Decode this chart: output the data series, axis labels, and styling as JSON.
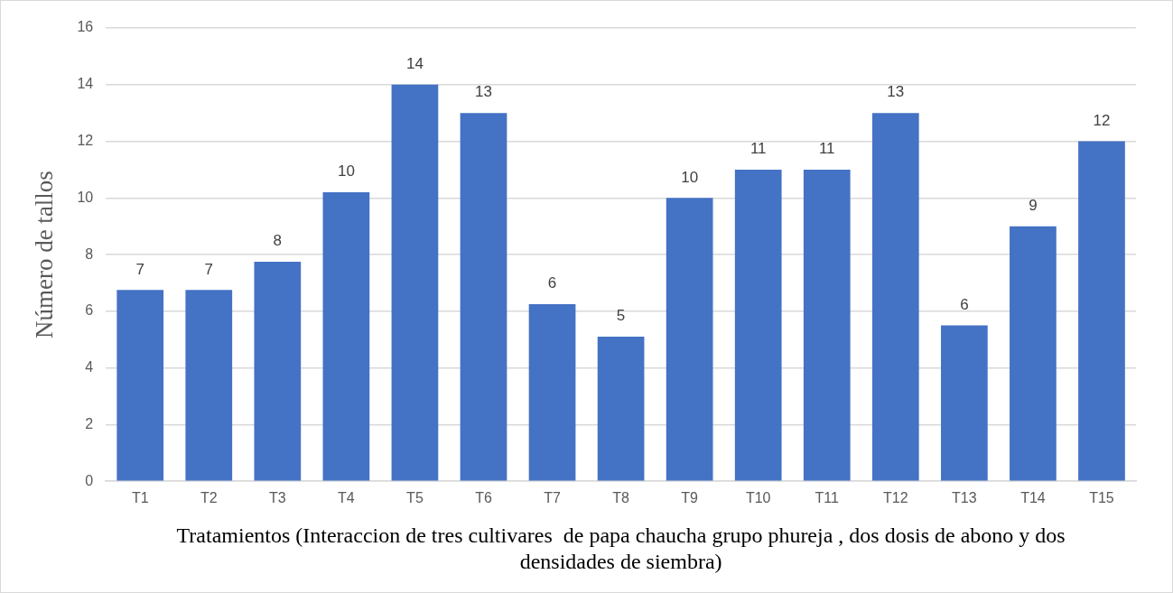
{
  "chart_data": {
    "type": "bar",
    "xlabel": "Tratamientos (Interaccion de tres cultivares  de papa chaucha grupo phureja , dos dosis de abono y dos densidades de siembra)",
    "ylabel": "Número de tallos",
    "categories": [
      "T1",
      "T2",
      "T3",
      "T4",
      "T5",
      "T6",
      "T7",
      "T8",
      "T9",
      "T10",
      "T11",
      "T12",
      "T13",
      "T14",
      "T15"
    ],
    "values": [
      6.75,
      6.75,
      7.75,
      10.2,
      14,
      13,
      6.25,
      5.1,
      10,
      11,
      11,
      13,
      5.5,
      9,
      12
    ],
    "value_labels": [
      "7",
      "7",
      "8",
      "10",
      "14",
      "13",
      "6",
      "5",
      "10",
      "11",
      "11",
      "13",
      "6",
      "9",
      "12"
    ],
    "color": "#4472c4",
    "ylim": [
      0,
      16
    ],
    "yticks": [
      0,
      2,
      4,
      6,
      8,
      10,
      12,
      14,
      16
    ],
    "grid": "y",
    "legend": false
  }
}
